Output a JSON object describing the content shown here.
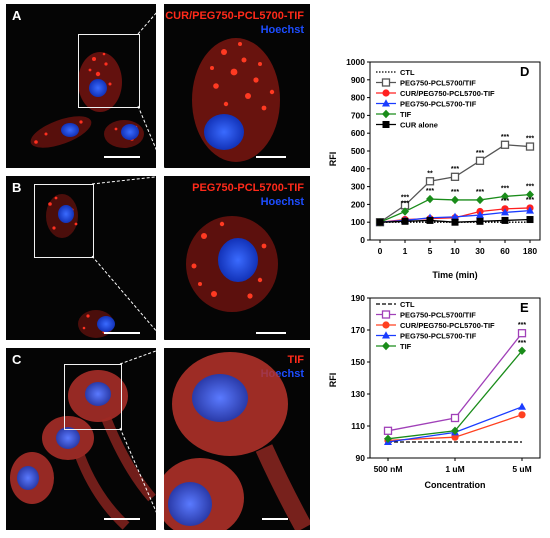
{
  "colors": {
    "red_stain": "#ff2a1a",
    "blue_stain": "#1d4dff",
    "background": "#050505"
  },
  "micrographs": [
    {
      "letter": "A",
      "stain_red": "CUR/PEG750-PCL5700-TIF",
      "stain_blue": "Hoechst"
    },
    {
      "letter": "B",
      "stain_red": "PEG750-PCL5700-TIF",
      "stain_blue": "Hoechst"
    },
    {
      "letter": "C",
      "stain_red": "TIF",
      "stain_blue": "Hoechst"
    }
  ],
  "chart_data": [
    {
      "type": "line",
      "panel_letter": "D",
      "xlabel": "Time (min)",
      "ylabel": "RFI",
      "categories": [
        "0",
        "1",
        "5",
        "10",
        "30",
        "60",
        "180"
      ],
      "ylim": [
        0,
        1000
      ],
      "yticks": [
        "0",
        "100",
        "200",
        "300",
        "400",
        "500",
        "600",
        "700",
        "800",
        "900",
        "1000"
      ],
      "legend_position": "top-left",
      "series": [
        {
          "name": "CTL",
          "color": "#000000",
          "style": "dotted",
          "marker": "none",
          "values": [
            100,
            100,
            100,
            100,
            100,
            100,
            100
          ]
        },
        {
          "name": "PEG750-PCL5700/TIF",
          "color": "#555555",
          "style": "solid",
          "marker": "open-square",
          "values": [
            100,
            195,
            330,
            355,
            445,
            535,
            525
          ]
        },
        {
          "name": "CUR/PEG750-PCL5700-TIF",
          "color": "#ff2020",
          "style": "solid",
          "marker": "circle",
          "values": [
            100,
            115,
            120,
            125,
            160,
            175,
            180
          ]
        },
        {
          "name": "PEG750-PCL5700-TIF",
          "color": "#1a3cff",
          "style": "solid",
          "marker": "triangle",
          "values": [
            100,
            110,
            125,
            130,
            140,
            155,
            165
          ]
        },
        {
          "name": "TIF",
          "color": "#1a8c1a",
          "style": "solid",
          "marker": "diamond",
          "values": [
            100,
            160,
            230,
            225,
            225,
            245,
            255
          ]
        },
        {
          "name": "CUR alone",
          "color": "#000000",
          "style": "solid",
          "marker": "filled-square",
          "values": [
            100,
            105,
            110,
            100,
            105,
            110,
            115
          ]
        }
      ],
      "significance_marks": [
        {
          "series": 1,
          "index": 1,
          "text": "***"
        },
        {
          "series": 1,
          "index": 2,
          "text": "**"
        },
        {
          "series": 1,
          "index": 3,
          "text": "***"
        },
        {
          "series": 1,
          "index": 4,
          "text": "***"
        },
        {
          "series": 1,
          "index": 5,
          "text": "***"
        },
        {
          "series": 1,
          "index": 6,
          "text": "***"
        },
        {
          "series": 4,
          "index": 1,
          "text": "***"
        },
        {
          "series": 4,
          "index": 2,
          "text": "***"
        },
        {
          "series": 4,
          "index": 3,
          "text": "***"
        },
        {
          "series": 4,
          "index": 4,
          "text": "***"
        },
        {
          "series": 4,
          "index": 5,
          "text": "***"
        },
        {
          "series": 4,
          "index": 6,
          "text": "***"
        },
        {
          "series": 2,
          "index": 5,
          "text": "***"
        },
        {
          "series": 2,
          "index": 6,
          "text": "***"
        }
      ]
    },
    {
      "type": "line",
      "panel_letter": "E",
      "xlabel": "Concentration",
      "ylabel": "RFI",
      "categories": [
        "500 nM",
        "1 uM",
        "5 uM"
      ],
      "ylim": [
        90,
        190
      ],
      "yticks": [
        "90",
        "110",
        "130",
        "150",
        "170",
        "190"
      ],
      "legend_position": "top-left",
      "series": [
        {
          "name": "CTL",
          "color": "#000000",
          "style": "dashed",
          "marker": "none",
          "values": [
            100,
            100,
            100
          ]
        },
        {
          "name": "PEG750-PCL5700/TIF",
          "color": "#a040b8",
          "style": "solid",
          "marker": "open-square",
          "values": [
            107,
            115,
            168
          ]
        },
        {
          "name": "CUR/PEG750-PCL5700-TIF",
          "color": "#ff4020",
          "style": "solid",
          "marker": "circle",
          "values": [
            101,
            103,
            117
          ]
        },
        {
          "name": "PEG750-PCL5700-TIF",
          "color": "#1a3cff",
          "style": "solid",
          "marker": "triangle",
          "values": [
            100,
            106,
            122
          ]
        },
        {
          "name": "TIF",
          "color": "#1a8c1a",
          "style": "solid",
          "marker": "diamond",
          "values": [
            102,
            107,
            157
          ]
        }
      ],
      "significance_marks": [
        {
          "series": 1,
          "index": 2,
          "text": "***"
        },
        {
          "series": 4,
          "index": 2,
          "text": "***"
        }
      ]
    }
  ]
}
